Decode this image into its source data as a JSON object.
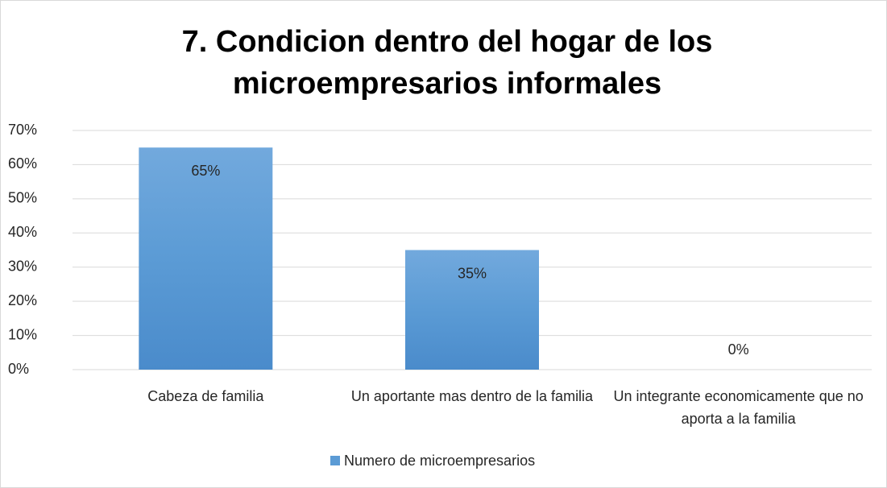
{
  "chart_data": {
    "type": "bar",
    "title": "7.  Condicion dentro del hogar de los microempresarios informales",
    "categories": [
      "Cabeza de familia",
      "Un aportante mas dentro de la familia",
      "Un integrante economicamente que no aporta a la familia"
    ],
    "series": [
      {
        "name": "Numero de microempresarios",
        "color": "#5b9bd5",
        "values": [
          65,
          35,
          0
        ],
        "value_labels": [
          "65%",
          "35%",
          "0%"
        ]
      }
    ],
    "ylim": [
      0,
      70
    ],
    "yticks": [
      {
        "value": 0,
        "label": "0%"
      },
      {
        "value": 10,
        "label": "10%"
      },
      {
        "value": 20,
        "label": "20%"
      },
      {
        "value": 30,
        "label": "30%"
      },
      {
        "value": 40,
        "label": "40%"
      },
      {
        "value": 50,
        "label": "50%"
      },
      {
        "value": 60,
        "label": "60%"
      },
      {
        "value": 70,
        "label": "70%"
      }
    ],
    "grid": true,
    "legend": "bottom"
  }
}
